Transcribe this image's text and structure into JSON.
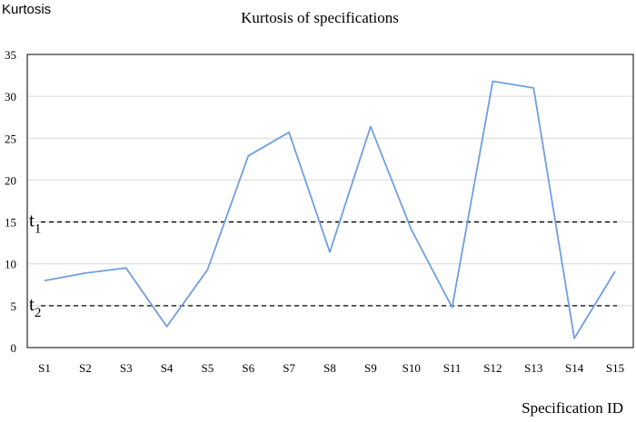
{
  "chart_data": {
    "type": "line",
    "title": "Kurtosis of specifications",
    "xlabel": "Specification ID",
    "ylabel": "Kurtosis",
    "categories": [
      "S1",
      "S2",
      "S3",
      "S4",
      "S5",
      "S6",
      "S7",
      "S8",
      "S9",
      "S10",
      "S11",
      "S12",
      "S13",
      "S14",
      "S15"
    ],
    "series": [
      {
        "values": [
          8.0,
          8.9,
          9.5,
          2.5,
          9.3,
          22.9,
          25.7,
          11.4,
          26.4,
          14.1,
          4.8,
          31.8,
          31.0,
          1.1,
          9.1
        ]
      }
    ],
    "ylim": [
      0,
      35
    ],
    "yticks": [
      "0",
      "5",
      "10",
      "15",
      "20",
      "25",
      "30",
      "35"
    ],
    "thresholds": [
      {
        "label_base": "t",
        "label_sub": "1",
        "value": 15
      },
      {
        "label_base": "t",
        "label_sub": "2",
        "value": 5
      }
    ],
    "grid": true,
    "legend": "none",
    "colors": {
      "line": "#6f9fe0",
      "grid": "#d9d9d9",
      "threshold": "#000000",
      "frame": "#000000"
    }
  }
}
